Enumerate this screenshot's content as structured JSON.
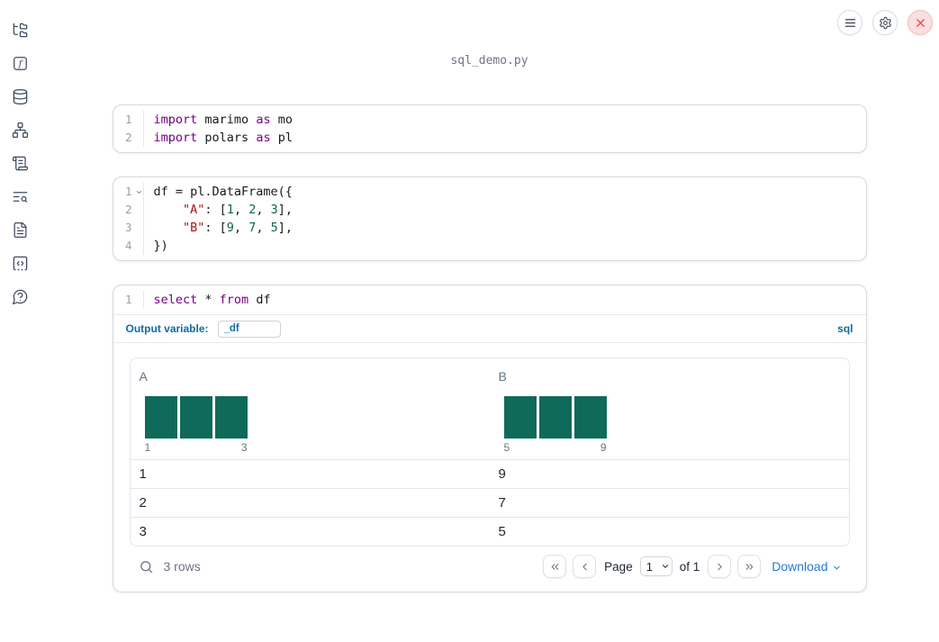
{
  "window": {
    "title": "sql_demo.py"
  },
  "topbar": {
    "buttons": [
      {
        "name": "notebook-menu"
      },
      {
        "name": "settings"
      },
      {
        "name": "shutdown"
      }
    ]
  },
  "sidebar": {
    "items": [
      {
        "name": "file-explorer"
      },
      {
        "name": "variables"
      },
      {
        "name": "datasets"
      },
      {
        "name": "dependency-graph"
      },
      {
        "name": "logs"
      },
      {
        "name": "tracebacks-search"
      },
      {
        "name": "documentation"
      },
      {
        "name": "snippets"
      },
      {
        "name": "ai-chat-help"
      }
    ]
  },
  "cells": [
    {
      "type": "python",
      "lines": [
        {
          "num": "1",
          "tokens": [
            [
              "kw",
              "import"
            ],
            [
              "pl",
              " marimo "
            ],
            [
              "kw",
              "as"
            ],
            [
              "pl",
              " mo"
            ]
          ]
        },
        {
          "num": "2",
          "tokens": [
            [
              "kw",
              "import"
            ],
            [
              "pl",
              " polars "
            ],
            [
              "kw",
              "as"
            ],
            [
              "pl",
              " pl"
            ]
          ]
        }
      ]
    },
    {
      "type": "python",
      "lines": [
        {
          "num": "1",
          "fold": true,
          "tokens": [
            [
              "pl",
              "df = pl.DataFrame({"
            ]
          ]
        },
        {
          "num": "2",
          "tokens": [
            [
              "pl",
              "    "
            ],
            [
              "str",
              "\"A\""
            ],
            [
              "pl",
              ": ["
            ],
            [
              "nm",
              "1"
            ],
            [
              "pl",
              ", "
            ],
            [
              "nm",
              "2"
            ],
            [
              "pl",
              ", "
            ],
            [
              "nm",
              "3"
            ],
            [
              "pl",
              "],"
            ]
          ]
        },
        {
          "num": "3",
          "tokens": [
            [
              "pl",
              "    "
            ],
            [
              "str",
              "\"B\""
            ],
            [
              "pl",
              ": ["
            ],
            [
              "nm",
              "9"
            ],
            [
              "pl",
              ", "
            ],
            [
              "nm",
              "7"
            ],
            [
              "pl",
              ", "
            ],
            [
              "nm",
              "5"
            ],
            [
              "pl",
              "],"
            ]
          ]
        },
        {
          "num": "4",
          "tokens": [
            [
              "pl",
              "})"
            ]
          ]
        }
      ]
    },
    {
      "type": "sql",
      "lines": [
        {
          "num": "1",
          "tokens": [
            [
              "kw",
              "select"
            ],
            [
              "pl",
              " * "
            ],
            [
              "kw",
              "from"
            ],
            [
              "pl",
              " df"
            ]
          ]
        }
      ],
      "output_variable_label": "Output variable:",
      "output_variable_value": "_df",
      "language_badge": "sql"
    }
  ],
  "table": {
    "columns": [
      {
        "name": "A",
        "histogram": {
          "bar_counts": [
            1,
            1,
            1
          ],
          "bin_edge_labels": [
            "1",
            "3"
          ]
        }
      },
      {
        "name": "B",
        "histogram": {
          "bar_counts": [
            1,
            1,
            1
          ],
          "bin_edge_labels": [
            "5",
            "9"
          ]
        }
      }
    ],
    "rows": [
      [
        "1",
        "9"
      ],
      [
        "2",
        "7"
      ],
      [
        "3",
        "5"
      ]
    ],
    "row_count_label": "3 rows",
    "pagination": {
      "page_label": "Page",
      "page_value": "1",
      "of_label": "of 1"
    },
    "download_label": "Download"
  },
  "colors": {
    "histogram_bar": "#0f6a59",
    "sql_accent_blue": "#136c9e",
    "link_blue": "#2579cf",
    "keyword_purple": "#770088",
    "string_red": "#aa1111",
    "number_green": "#116644",
    "close_button_red": "#d94f4f"
  }
}
